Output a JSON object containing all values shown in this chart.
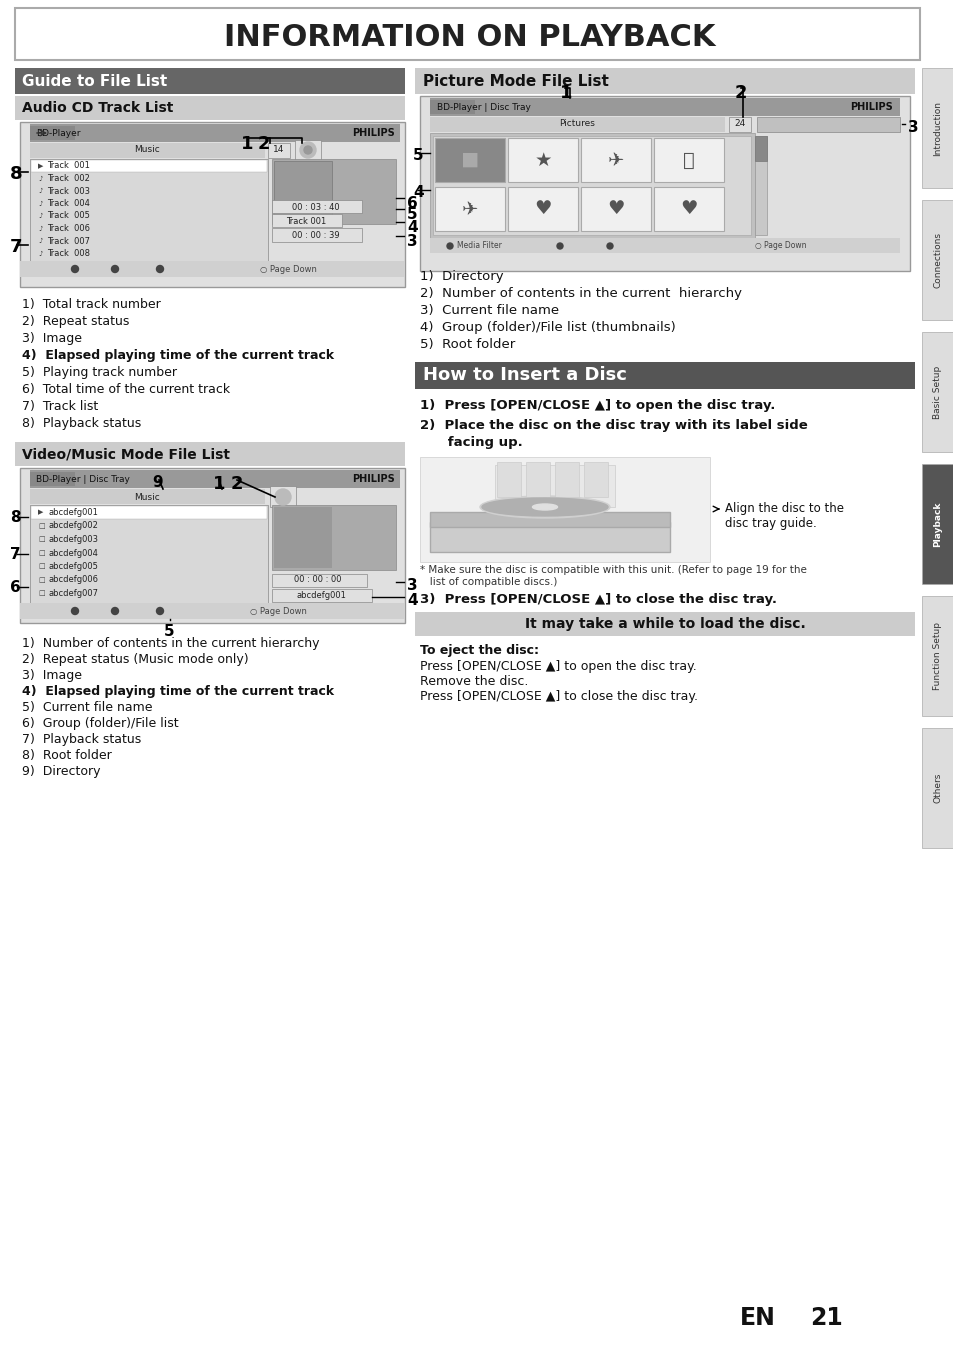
{
  "title": "INFORMATION ON PLAYBACK",
  "bg_color": "#ffffff",
  "right_tab_labels": [
    "Introduction",
    "Connections",
    "Basic Setup",
    "Playback",
    "Function Setup",
    "Others"
  ],
  "right_tab_active": "Playback",
  "page_number": "21",
  "audio_cd_items": [
    "1)  Total track number",
    "2)  Repeat status",
    "3)  Image",
    "4)  Elapsed playing time of the current track",
    "5)  Playing track number",
    "6)  Total time of the current track",
    "7)  Track list",
    "8)  Playback status"
  ],
  "audio_cd_bold": [
    false,
    false,
    false,
    true,
    false,
    false,
    false,
    false
  ],
  "video_music_items": [
    "1)  Number of contents in the current hierarchy",
    "2)  Repeat status (Music mode only)",
    "3)  Image",
    "4)  Elapsed playing time of the current track",
    "5)  Current file name",
    "6)  Group (folder)/File list",
    "7)  Playback status",
    "8)  Root folder",
    "9)  Directory"
  ],
  "video_music_bold": [
    false,
    false,
    false,
    true,
    false,
    false,
    false,
    false,
    false
  ],
  "picture_items": [
    "1)  Directory",
    "2)  Number of contents in the current  hierarchy",
    "3)  Current file name",
    "4)  Group (folder)/File list (thumbnails)",
    "5)  Root folder"
  ],
  "how_to_step1": "1)  Press [OPEN/CLOSE ▲] to open the disc tray.",
  "how_to_step2a": "2)  Place the disc on the disc tray with its label side",
  "how_to_step2b": "      facing up.",
  "how_to_step3": "3)  Press [OPEN/CLOSE ▲] to close the disc tray.",
  "note_text": "It may take a while to load the disc.",
  "eject_title": "To eject the disc:",
  "eject_line1": "Press [OPEN/CLOSE ▲] to open the disc tray.",
  "eject_line2": "Remove the disc.",
  "eject_line3": "Press [OPEN/CLOSE ▲] to close the disc tray.",
  "align_text": "Align the disc to the\ndisc tray guide.",
  "asterisk_note1": "* Make sure the disc is compatible with this unit. (Refer to page 19 for the",
  "asterisk_note2": "   list of compatible discs.)"
}
